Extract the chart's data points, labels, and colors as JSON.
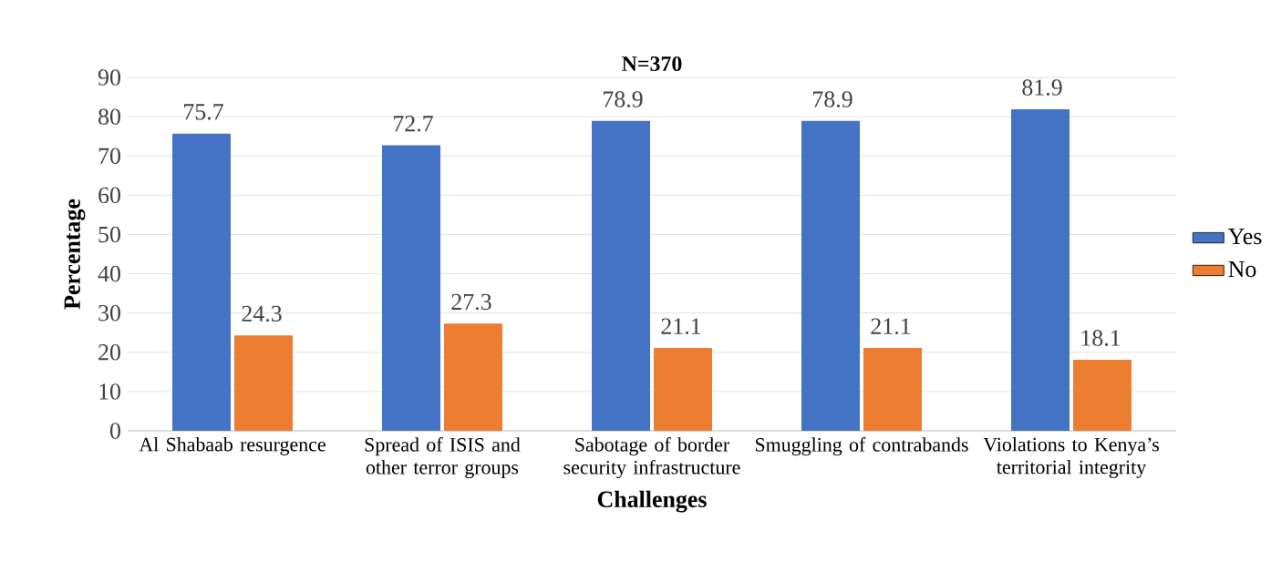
{
  "chart_data": {
    "type": "bar",
    "title": "N=370",
    "xlabel": "Challenges",
    "ylabel": "Percentage",
    "categories": [
      "Al Shabaab resurgence",
      "Spread of ISIS and other terror groups",
      "Sabotage of border security infrastructure",
      "Smuggling of contrabands",
      "Violations to Kenya’s territorial integrity"
    ],
    "series": [
      {
        "name": "Yes",
        "color": "#4472c4",
        "values": [
          75.7,
          72.7,
          78.9,
          78.9,
          81.9
        ]
      },
      {
        "name": "No",
        "color": "#ed7d31",
        "values": [
          24.3,
          27.3,
          21.1,
          21.1,
          18.1
        ]
      }
    ],
    "ylim": [
      0,
      90
    ],
    "yticks": [
      0,
      10,
      20,
      30,
      40,
      50,
      60,
      70,
      80,
      90
    ],
    "grid": "y",
    "legend": "right",
    "data_labels": true
  }
}
